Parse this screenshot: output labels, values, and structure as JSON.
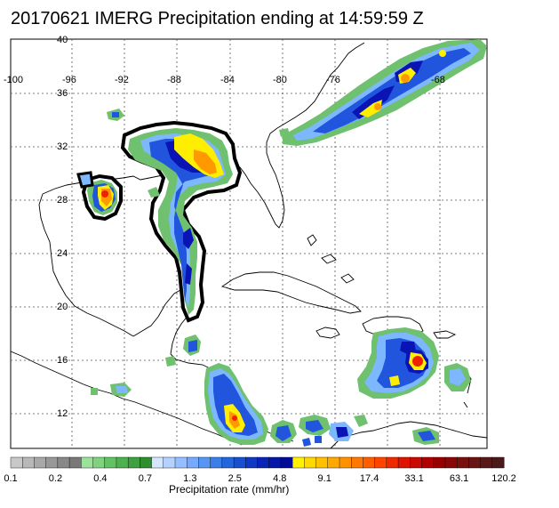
{
  "title": "20170621 IMERG Precipitation ending at 14:59:59 Z",
  "map": {
    "lon_labels": [
      "-100",
      "-96",
      "-92",
      "-88",
      "-84",
      "-80",
      "-76",
      "-68"
    ],
    "lat_labels": [
      "40",
      "36",
      "32",
      "28",
      "24",
      "20",
      "16",
      "12"
    ],
    "colors": {
      "outline": "#000000",
      "low_green": "#6fc06f",
      "light_blue": "#7db8ff",
      "mid_blue": "#2255dd",
      "dark_blue": "#0a14b4",
      "yellow": "#ffee00",
      "orange": "#ff9900",
      "red": "#ee2200"
    }
  },
  "colorbar": {
    "title": "Precipitation rate (mm/hr)",
    "tick_labels": [
      "0.1",
      "0.2",
      "0.4",
      "0.7",
      "1.3",
      "2.5",
      "4.8",
      "9.1",
      "17.4",
      "33.1",
      "63.1",
      "120.2"
    ],
    "colors": [
      "#c8c8c8",
      "#b8b8b8",
      "#a8a8a8",
      "#989898",
      "#888888",
      "#787878",
      "#9be39b",
      "#7fd37f",
      "#62c262",
      "#4fb04f",
      "#3ea03e",
      "#2e8e2e",
      "#d6e6ff",
      "#b4d2ff",
      "#94beff",
      "#76aaff",
      "#5896f5",
      "#3c7ee8",
      "#2266dd",
      "#184ed0",
      "#1038c4",
      "#0a24b8",
      "#0616a8",
      "#030c98",
      "#fff200",
      "#ffd800",
      "#ffc000",
      "#ffa800",
      "#ff9000",
      "#ff7800",
      "#ff5e00",
      "#ff4400",
      "#f02a00",
      "#dd1500",
      "#c80a00",
      "#b00000",
      "#980000",
      "#880808",
      "#781010",
      "#681414",
      "#581818",
      "#4a1a1a"
    ]
  }
}
